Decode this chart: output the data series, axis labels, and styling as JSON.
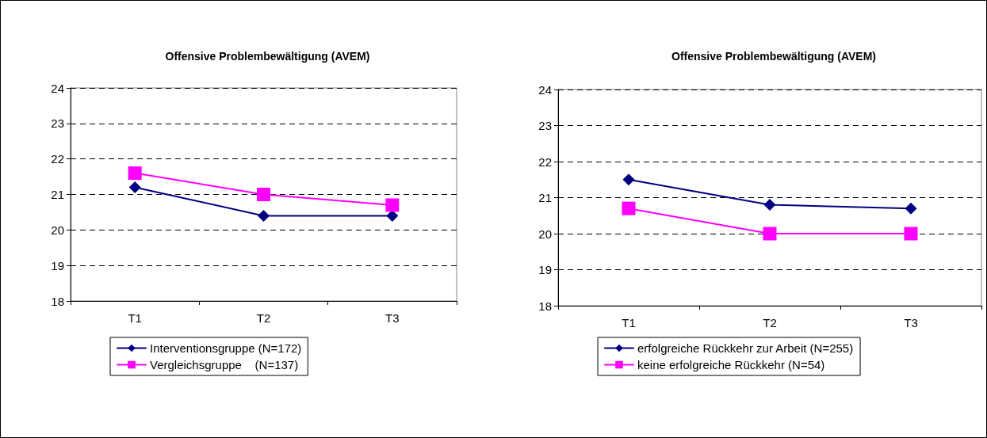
{
  "chart_data": [
    {
      "type": "line",
      "title": "Offensive Problembewältigung (AVEM)",
      "categories": [
        "T1",
        "T2",
        "T3"
      ],
      "ylim": [
        18,
        24
      ],
      "yticks": [
        18,
        19,
        20,
        21,
        22,
        23,
        24
      ],
      "grid": "y",
      "legend": "bottom",
      "line_style": "solid",
      "series": [
        {
          "name": "Interventionsgruppe (N=172)",
          "color": "#000080",
          "marker": "diamond",
          "values": [
            21.2,
            20.4,
            20.4
          ]
        },
        {
          "name": "Vergleichsgruppe    (N=137)",
          "color": "#ff00ff",
          "marker": "square",
          "values": [
            21.6,
            21.0,
            20.7
          ]
        }
      ]
    },
    {
      "type": "line",
      "title": "Offensive Problembewältigung (AVEM)",
      "categories": [
        "T1",
        "T2",
        "T3"
      ],
      "ylim": [
        18,
        24
      ],
      "yticks": [
        18,
        19,
        20,
        21,
        22,
        23,
        24
      ],
      "grid": "y",
      "legend": "bottom",
      "line_style": "solid",
      "series": [
        {
          "name": "erfolgreiche Rückkehr zur Arbeit (N=255)",
          "color": "#000080",
          "marker": "diamond",
          "values": [
            21.5,
            20.8,
            20.7
          ]
        },
        {
          "name": "keine erfolgreiche Rückkehr (N=54)",
          "color": "#ff00ff",
          "marker": "square",
          "values": [
            20.7,
            20.0,
            20.0
          ]
        }
      ]
    }
  ]
}
